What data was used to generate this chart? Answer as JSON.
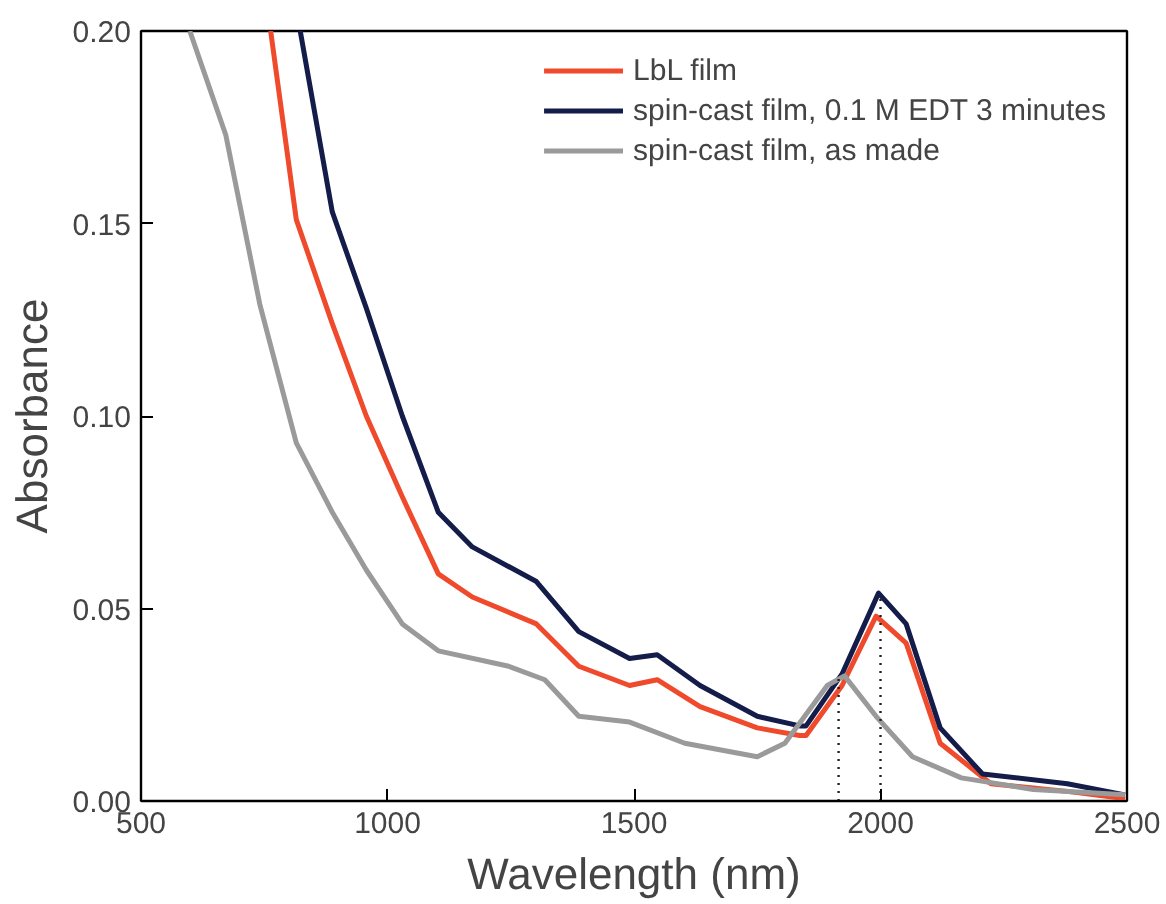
{
  "chart_data": {
    "type": "line",
    "xlabel": "Wavelength (nm)",
    "ylabel": "Absorbance",
    "xlim": [
      500,
      2500
    ],
    "ylim": [
      0,
      0.2
    ],
    "xticks": [
      500,
      1000,
      1500,
      2000,
      2500
    ],
    "yticks": [
      {
        "value": 0,
        "label": "0.00"
      },
      {
        "value": 0.05,
        "label": "0.05"
      },
      {
        "value": 0.1,
        "label": "0.10"
      },
      {
        "value": 0.15,
        "label": "0.15"
      },
      {
        "value": 0.2,
        "label": "0.20"
      }
    ],
    "grid": false,
    "legend": "top right",
    "marker": "none",
    "line_style": "solid",
    "series": [
      {
        "name": "LbL film",
        "color": "#f04a2c",
        "x": [
          763,
          815,
          888,
          957,
          1030,
          1103,
          1172,
          1302,
          1388,
          1491,
          1547,
          1634,
          1750,
          1836,
          1849,
          1922,
          1991,
          2052,
          2121,
          2224,
          2379,
          2496
        ],
        "values": [
          0.2,
          0.151,
          0.124,
          0.1,
          0.079,
          0.059,
          0.053,
          0.046,
          0.035,
          0.03,
          0.0315,
          0.0245,
          0.019,
          0.017,
          0.017,
          0.03,
          0.048,
          0.041,
          0.015,
          0.0045,
          0.0025,
          0.0006
        ]
      },
      {
        "name": "spin-cast film, 0.1 M EDT 3 minutes",
        "color": "#141c4a",
        "x": [
          823,
          888,
          957,
          1030,
          1103,
          1172,
          1302,
          1388,
          1491,
          1547,
          1634,
          1750,
          1836,
          1849,
          1922,
          1996,
          2052,
          2121,
          2207,
          2379,
          2496
        ],
        "values": [
          0.2,
          0.153,
          0.128,
          0.1,
          0.075,
          0.066,
          0.057,
          0.044,
          0.037,
          0.038,
          0.03,
          0.022,
          0.0195,
          0.0195,
          0.033,
          0.054,
          0.046,
          0.019,
          0.007,
          0.0045,
          0.0016
        ]
      },
      {
        "name": "spin-cast film, as made",
        "color": "#9a9a9a",
        "x": [
          599,
          672,
          741,
          815,
          888,
          957,
          1030,
          1103,
          1246,
          1319,
          1388,
          1491,
          1603,
          1750,
          1806,
          1892,
          1927,
          1991,
          2065,
          2164,
          2310,
          2496
        ],
        "values": [
          0.2,
          0.173,
          0.129,
          0.093,
          0.075,
          0.06,
          0.046,
          0.039,
          0.035,
          0.0315,
          0.022,
          0.0205,
          0.015,
          0.0115,
          0.015,
          0.03,
          0.0325,
          0.022,
          0.0115,
          0.006,
          0.003,
          0.0016
        ]
      },
      {
        "color": "#222222",
        "line_style": "dotted",
        "x": [
          1915,
          1915
        ],
        "values": [
          0,
          0.0325
        ]
      },
      {
        "color": "#222222",
        "line_style": "dotted",
        "x": [
          2000,
          2000
        ],
        "values": [
          0,
          0.054
        ]
      }
    ]
  }
}
